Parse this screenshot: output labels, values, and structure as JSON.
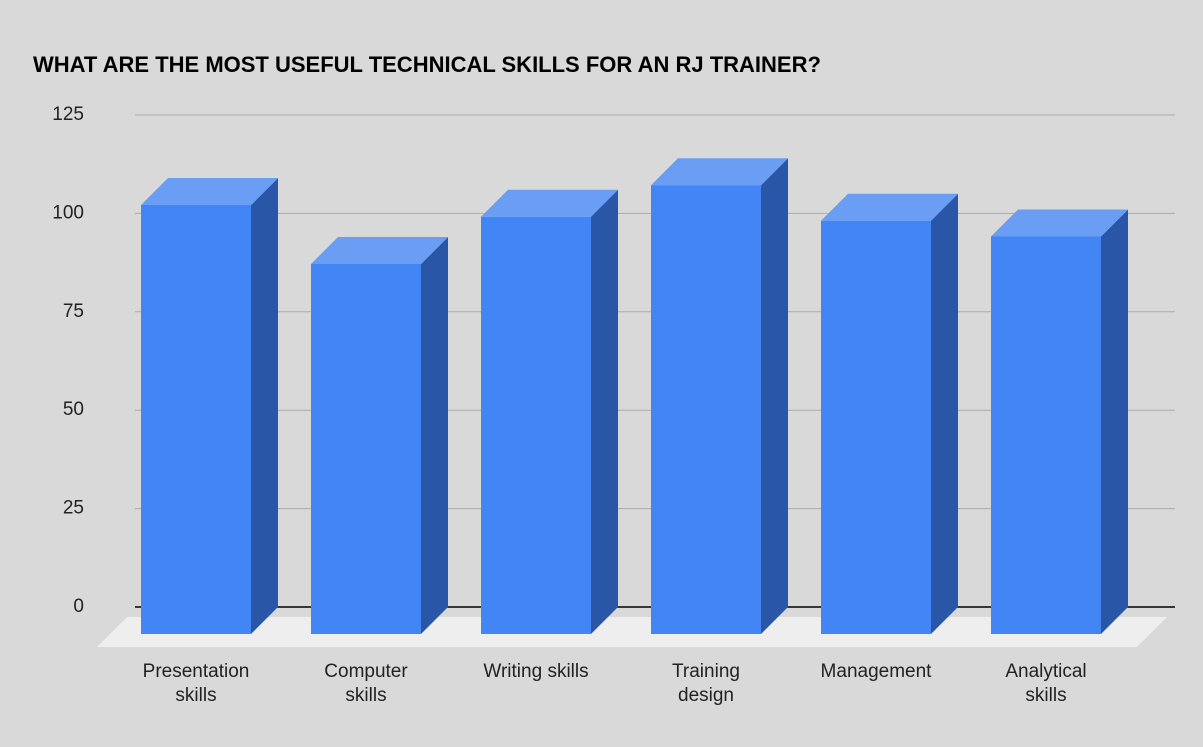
{
  "chart_data": {
    "type": "bar3d",
    "title": "WHAT ARE THE MOST USEFUL TECHNICAL SKILLS FOR AN RJ TRAINER?",
    "categories": [
      "Presentation skills",
      "Computer skills",
      "Writing skills",
      "Training design",
      "Management",
      "Analytical skills"
    ],
    "values": [
      109,
      94,
      106,
      114,
      105,
      101
    ],
    "color": "#4285f4",
    "ylim": [
      0,
      125
    ],
    "yticks": [
      0,
      25,
      50,
      75,
      100,
      125
    ],
    "grid": true
  }
}
